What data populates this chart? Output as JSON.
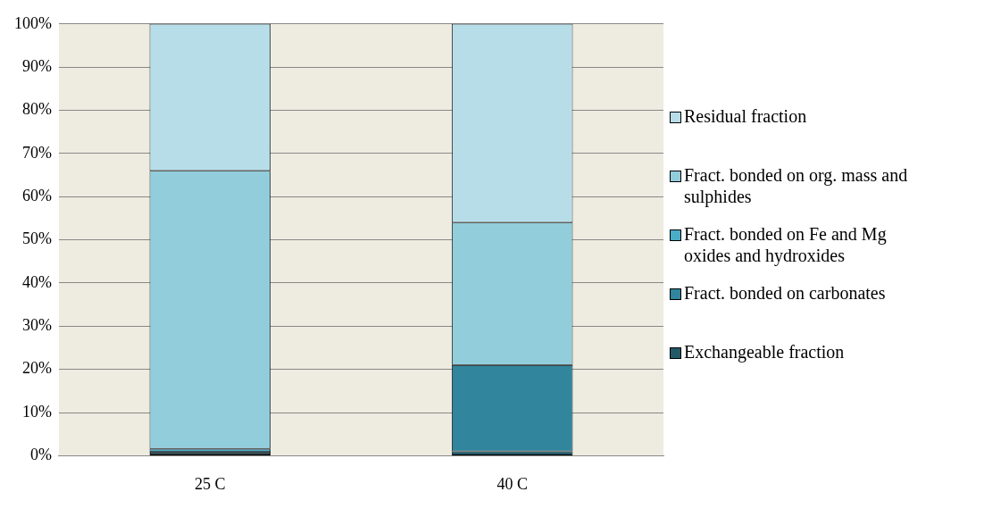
{
  "chart_data": {
    "type": "bar",
    "stacked": true,
    "categories": [
      "25 C",
      "40 C"
    ],
    "series": [
      {
        "name": "Exchangeable fraction",
        "color": "#215967",
        "values": [
          0.5,
          1
        ]
      },
      {
        "name": "Fract. bonded on carbonates",
        "color": "#31859c",
        "values": [
          0.4,
          20
        ]
      },
      {
        "name": "Fract. bonded on Fe and Mg oxides and hydroxides",
        "color": "#4bacc6",
        "values": [
          0.7,
          0
        ]
      },
      {
        "name": "Fract. bonded on org. mass and sulphides",
        "color": "#92cddc",
        "values": [
          64.4,
          33
        ]
      },
      {
        "name": "Residual fraction",
        "color": "#b7dde8",
        "values": [
          34,
          46
        ]
      }
    ],
    "ylim": [
      0,
      100
    ],
    "yticks": [
      {
        "value": 0,
        "label": "0%"
      },
      {
        "value": 10,
        "label": "10%"
      },
      {
        "value": 20,
        "label": "20%"
      },
      {
        "value": 30,
        "label": "30%"
      },
      {
        "value": 40,
        "label": "40%"
      },
      {
        "value": 50,
        "label": "50%"
      },
      {
        "value": 60,
        "label": "60%"
      },
      {
        "value": 70,
        "label": "70%"
      },
      {
        "value": 80,
        "label": "80%"
      },
      {
        "value": 90,
        "label": "90%"
      },
      {
        "value": 100,
        "label": "100%"
      }
    ],
    "grid": "y",
    "legend": "right"
  }
}
